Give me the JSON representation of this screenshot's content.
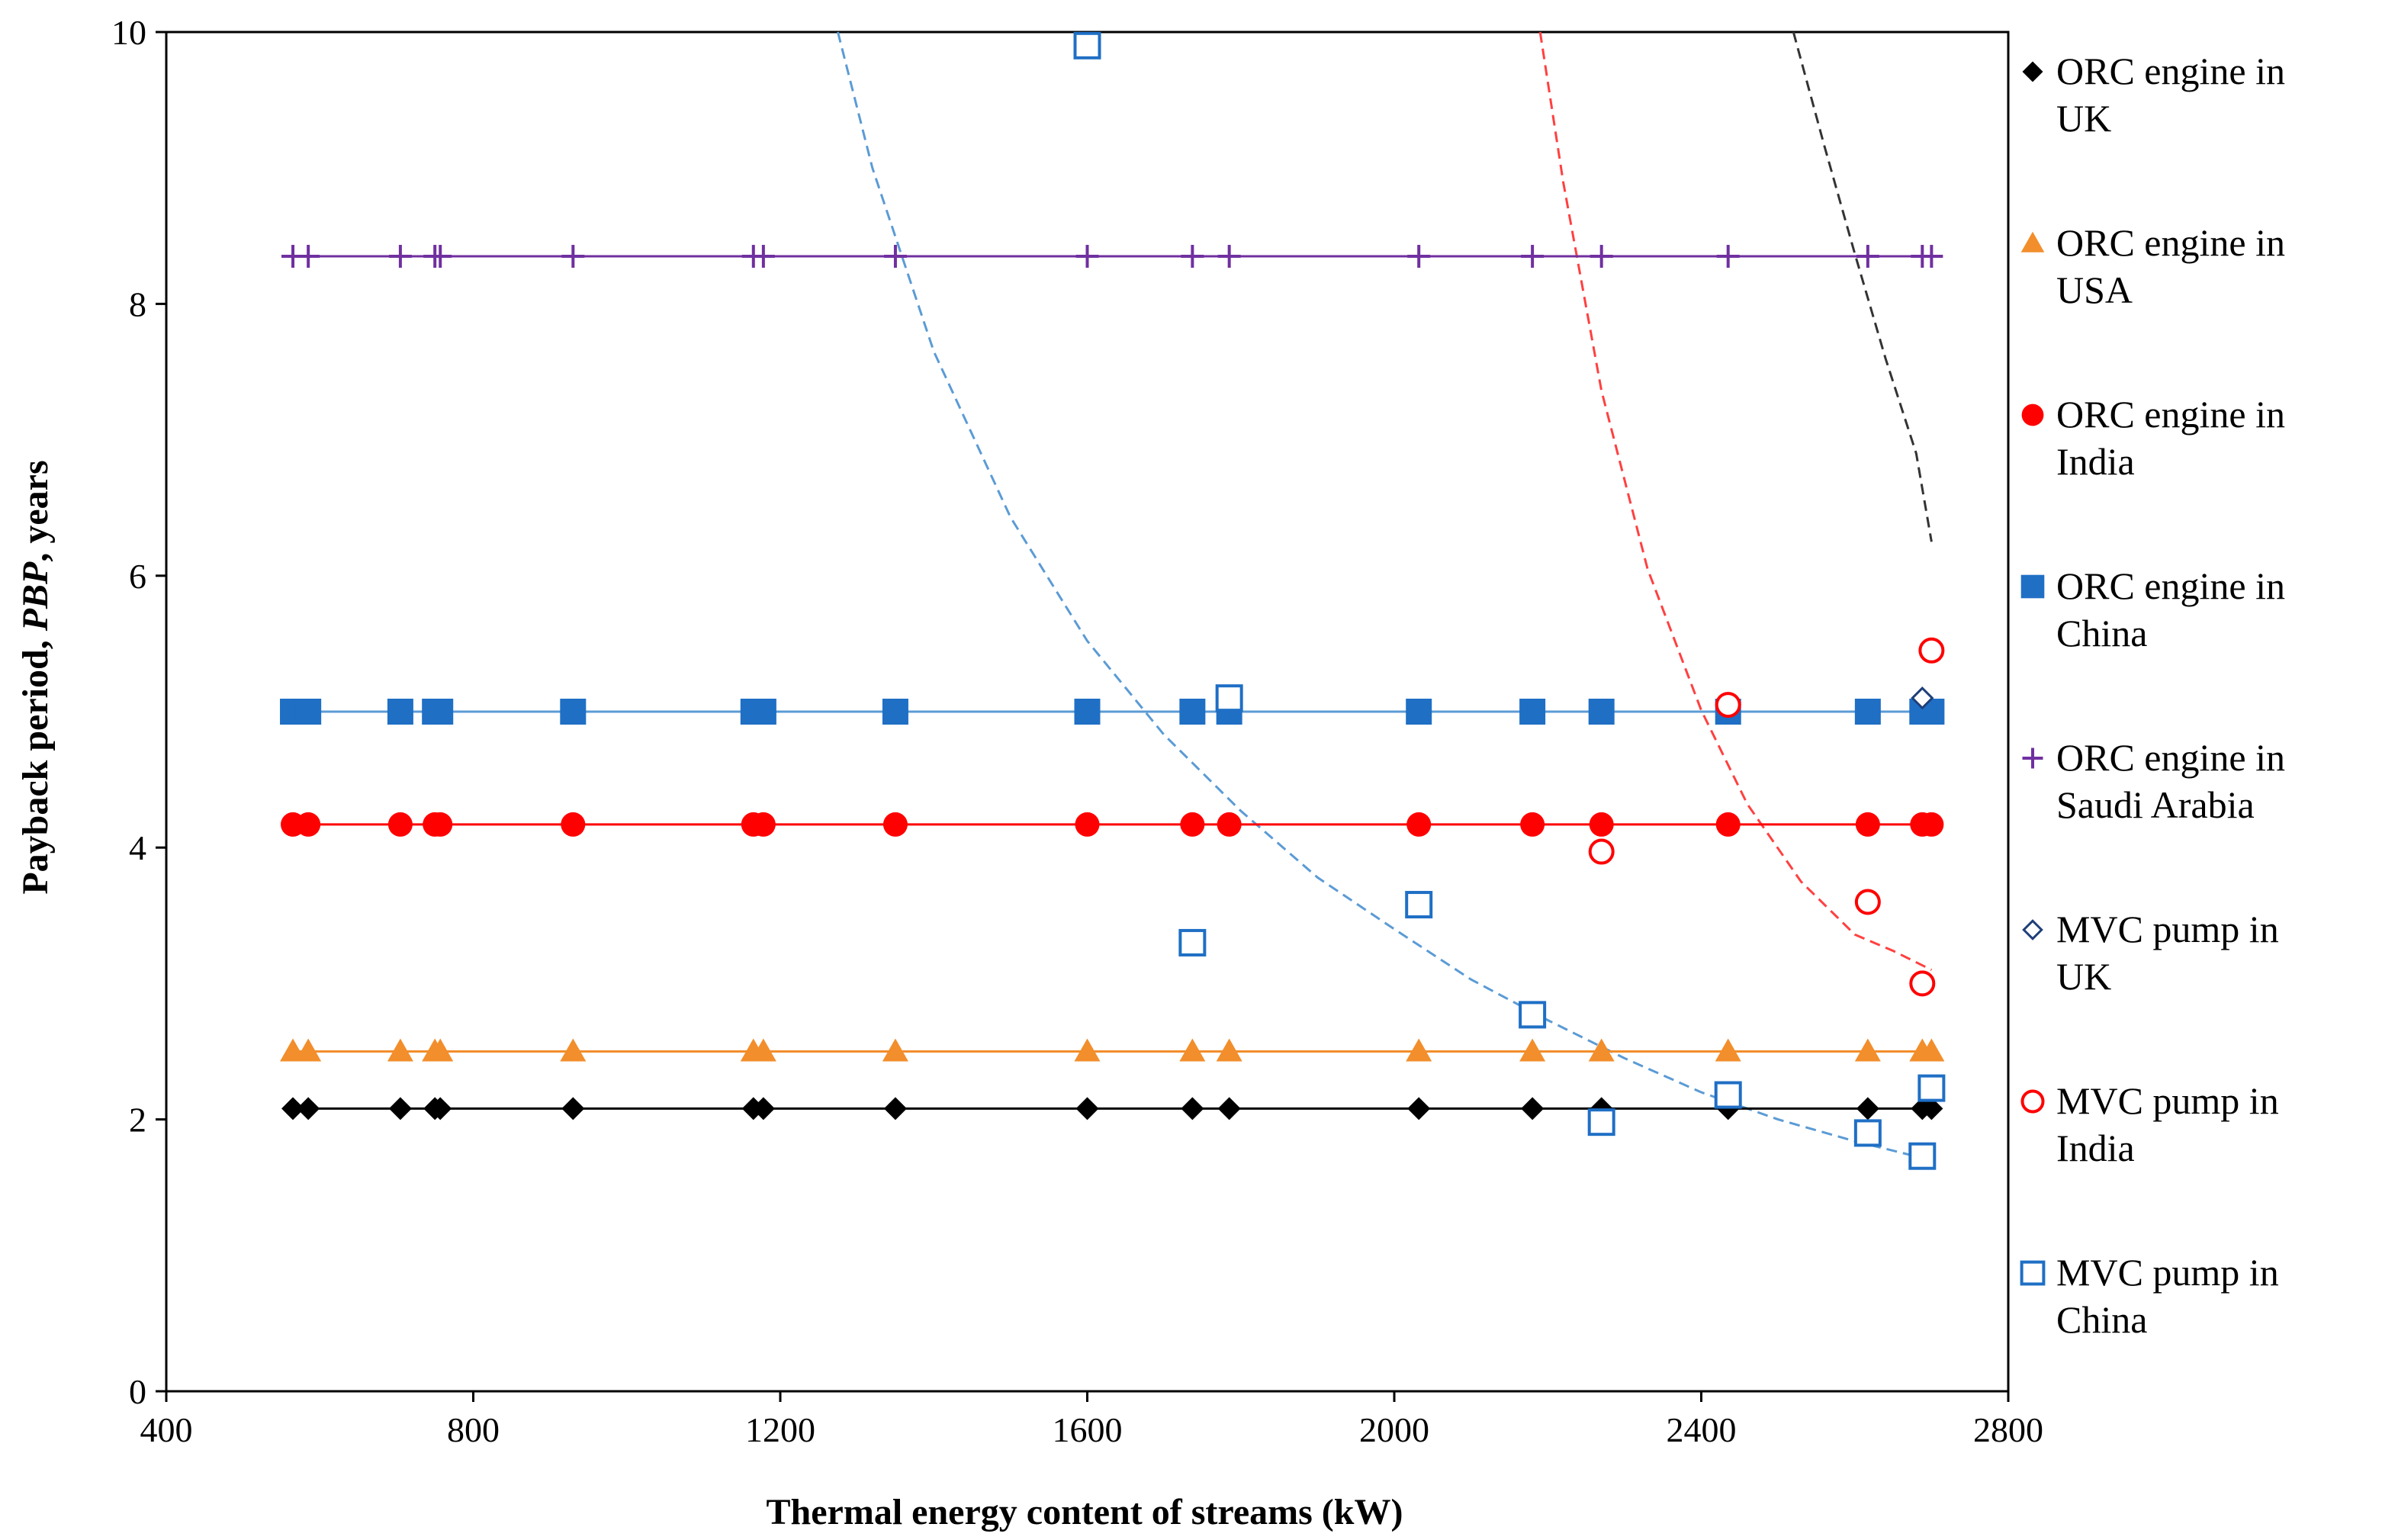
{
  "chart_data": {
    "type": "scatter",
    "title": "",
    "xlabel": "Thermal energy content of streams (kW)",
    "ylabel_prefix": "Payback period, ",
    "ylabel_italic": "PBP",
    "ylabel_suffix": ", years",
    "xlim": [
      400,
      2800
    ],
    "ylim": [
      0,
      10
    ],
    "xticks": [
      400,
      800,
      1200,
      1600,
      2000,
      2400,
      2800
    ],
    "yticks": [
      0,
      2,
      4,
      6,
      8,
      10
    ],
    "x_common": [
      565,
      585,
      705,
      750,
      757,
      930,
      1165,
      1178,
      1350,
      1600,
      1737,
      1785,
      2032,
      2180,
      2270,
      2435,
      2617,
      2688,
      2700
    ],
    "series": [
      {
        "name": "ORC engine in UK",
        "line1": "ORC engine in",
        "line2": "UK",
        "marker": "diamond-filled",
        "color": "#000000",
        "const_y": 2.08,
        "fit_line": true
      },
      {
        "name": "ORC engine in USA",
        "line1": "ORC engine in",
        "line2": "USA",
        "marker": "triangle-filled",
        "color": "#f28e2b",
        "const_y": 2.5,
        "fit_line": true
      },
      {
        "name": "ORC engine in India",
        "line1": "ORC engine in",
        "line2": "India",
        "marker": "circle-filled",
        "color": "#ff0000",
        "const_y": 4.17,
        "fit_line": true
      },
      {
        "name": "ORC engine in China",
        "line1": "ORC engine in",
        "line2": "China",
        "marker": "square-filled",
        "color": "#1f6fc5",
        "const_y": 5.0,
        "fit_line": true
      },
      {
        "name": "ORC engine in Saudi Arabia",
        "line1": "ORC engine in",
        "line2": "Saudi Arabia",
        "marker": "plus",
        "color": "#7030a0",
        "const_y": 8.35,
        "fit_line": true
      },
      {
        "name": "MVC pump in UK",
        "line1": "MVC pump in",
        "line2": "UK",
        "marker": "diamond-open",
        "color": "#1f3f7a",
        "points": [
          {
            "x": 2688,
            "y": 5.1
          }
        ],
        "trend": [
          [
            2520,
            10.0
          ],
          [
            2560,
            9.17
          ],
          [
            2600,
            8.37
          ],
          [
            2640,
            7.6
          ],
          [
            2680,
            6.9
          ],
          [
            2700,
            6.25
          ]
        ],
        "trend_color": "#333333"
      },
      {
        "name": "MVC pump in India",
        "line1": "MVC pump in",
        "line2": "India",
        "marker": "circle-open",
        "color": "#ff0000",
        "points": [
          {
            "x": 2270,
            "y": 3.97
          },
          {
            "x": 2435,
            "y": 5.05
          },
          {
            "x": 2617,
            "y": 3.6
          },
          {
            "x": 2688,
            "y": 3.0
          },
          {
            "x": 2700,
            "y": 5.45
          }
        ],
        "trend": [
          [
            2190,
            10.0
          ],
          [
            2220,
            8.9
          ],
          [
            2270,
            7.36
          ],
          [
            2330,
            6.05
          ],
          [
            2400,
            5.01
          ],
          [
            2460,
            4.32
          ],
          [
            2530,
            3.75
          ],
          [
            2600,
            3.36
          ],
          [
            2650,
            3.24
          ],
          [
            2700,
            3.1
          ]
        ],
        "trend_color": "#ff4040"
      },
      {
        "name": "MVC pump in China",
        "line1": "MVC pump in",
        "line2": "China",
        "marker": "square-open",
        "color": "#1f6fc5",
        "points": [
          {
            "x": 1600,
            "y": 9.9
          },
          {
            "x": 1737,
            "y": 3.3
          },
          {
            "x": 1785,
            "y": 5.1
          },
          {
            "x": 2032,
            "y": 3.58
          },
          {
            "x": 2180,
            "y": 2.77
          },
          {
            "x": 2270,
            "y": 1.98
          },
          {
            "x": 2435,
            "y": 2.18
          },
          {
            "x": 2617,
            "y": 1.9
          },
          {
            "x": 2688,
            "y": 1.73
          },
          {
            "x": 2700,
            "y": 2.23
          }
        ],
        "trend": [
          [
            1275,
            10.0
          ],
          [
            1320,
            9.0
          ],
          [
            1400,
            7.65
          ],
          [
            1500,
            6.43
          ],
          [
            1600,
            5.52
          ],
          [
            1700,
            4.83
          ],
          [
            1800,
            4.27
          ],
          [
            1900,
            3.78
          ],
          [
            2000,
            3.4
          ],
          [
            2100,
            3.03
          ],
          [
            2200,
            2.73
          ],
          [
            2300,
            2.45
          ],
          [
            2400,
            2.2
          ],
          [
            2500,
            2.0
          ],
          [
            2600,
            1.84
          ],
          [
            2700,
            1.7
          ]
        ],
        "trend_color": "#5b9bd5"
      }
    ]
  }
}
